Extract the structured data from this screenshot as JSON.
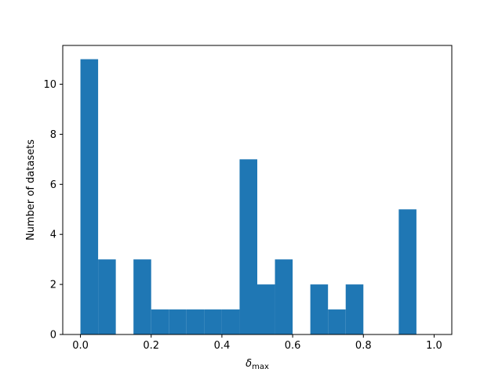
{
  "chart_data": {
    "type": "bar",
    "bins": [
      {
        "x0": 0.0,
        "x1": 0.05,
        "count": 11
      },
      {
        "x0": 0.05,
        "x1": 0.1,
        "count": 3
      },
      {
        "x0": 0.1,
        "x1": 0.15,
        "count": 0
      },
      {
        "x0": 0.15,
        "x1": 0.2,
        "count": 3
      },
      {
        "x0": 0.2,
        "x1": 0.25,
        "count": 1
      },
      {
        "x0": 0.25,
        "x1": 0.3,
        "count": 1
      },
      {
        "x0": 0.3,
        "x1": 0.35,
        "count": 1
      },
      {
        "x0": 0.35,
        "x1": 0.4,
        "count": 1
      },
      {
        "x0": 0.4,
        "x1": 0.45,
        "count": 1
      },
      {
        "x0": 0.45,
        "x1": 0.5,
        "count": 7
      },
      {
        "x0": 0.5,
        "x1": 0.55,
        "count": 2
      },
      {
        "x0": 0.55,
        "x1": 0.6,
        "count": 3
      },
      {
        "x0": 0.6,
        "x1": 0.65,
        "count": 0
      },
      {
        "x0": 0.65,
        "x1": 0.7,
        "count": 2
      },
      {
        "x0": 0.7,
        "x1": 0.75,
        "count": 1
      },
      {
        "x0": 0.75,
        "x1": 0.8,
        "count": 2
      },
      {
        "x0": 0.8,
        "x1": 0.85,
        "count": 0
      },
      {
        "x0": 0.85,
        "x1": 0.9,
        "count": 0
      },
      {
        "x0": 0.9,
        "x1": 0.95,
        "count": 5
      }
    ],
    "xlabel_main": "δ",
    "xlabel_sub": "max",
    "ylabel": "Number of datasets",
    "xlim": [
      -0.05,
      1.05
    ],
    "ylim": [
      0,
      11.55
    ],
    "xticks": [
      0.0,
      0.2,
      0.4,
      0.6,
      0.8,
      1.0
    ],
    "xtick_labels": [
      "0.0",
      "0.2",
      "0.4",
      "0.6",
      "0.8",
      "1.0"
    ],
    "yticks": [
      0,
      2,
      4,
      6,
      8,
      10
    ],
    "ytick_labels": [
      "0",
      "2",
      "4",
      "6",
      "8",
      "10"
    ],
    "grid": false,
    "bar_color": "#1f77b4"
  }
}
